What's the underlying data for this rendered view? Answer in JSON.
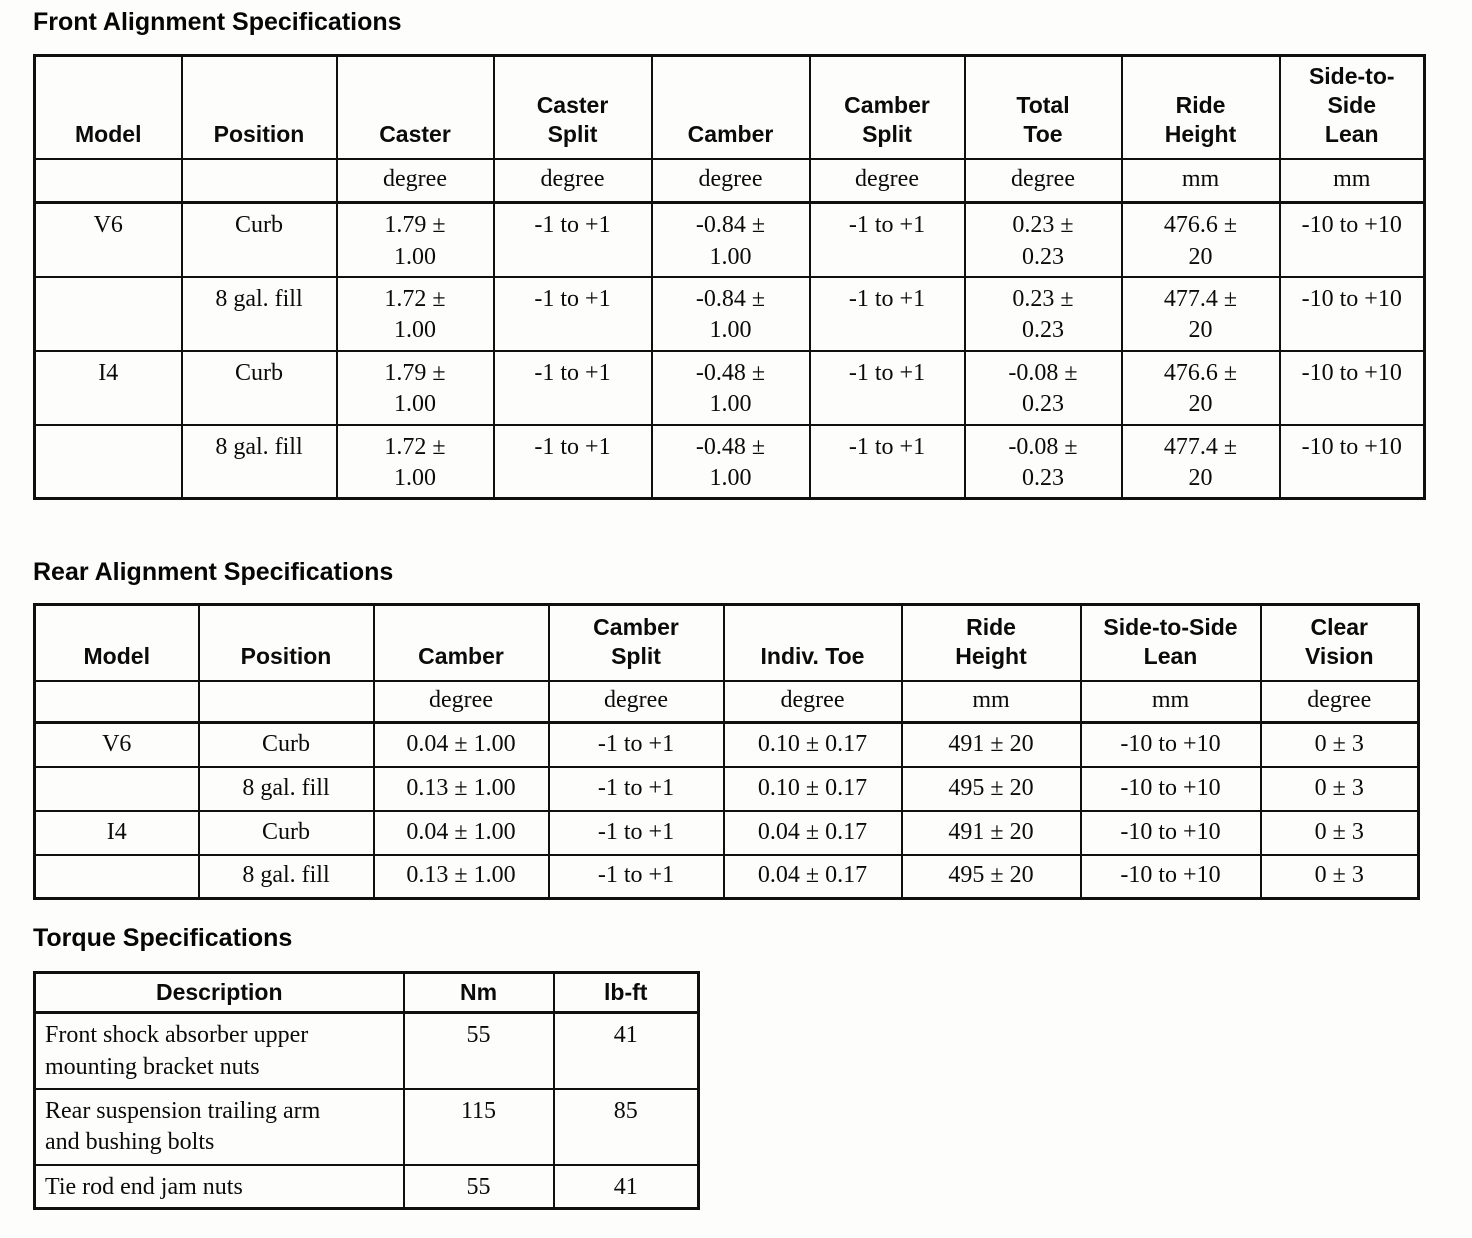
{
  "front": {
    "title": "Front Alignment Specifications",
    "headers": [
      "Model",
      "Position",
      "Caster",
      "Caster\nSplit",
      "Camber",
      "Camber\nSplit",
      "Total\nToe",
      "Ride\nHeight",
      "Side-to-\nSide\nLean"
    ],
    "units": [
      "",
      "",
      "degree",
      "degree",
      "degree",
      "degree",
      "degree",
      "mm",
      "mm"
    ],
    "rows": [
      [
        "V6",
        "Curb",
        "1.79 ±\n1.00",
        "-1 to +1",
        "-0.84 ±\n1.00",
        "-1 to +1",
        "0.23 ±\n0.23",
        "476.6 ±\n20",
        "-10 to +10"
      ],
      [
        "",
        "8 gal. fill",
        "1.72 ±\n1.00",
        "-1 to +1",
        "-0.84 ±\n1.00",
        "-1 to +1",
        "0.23 ±\n0.23",
        "477.4 ±\n20",
        "-10 to +10"
      ],
      [
        "I4",
        "Curb",
        "1.79 ±\n1.00",
        "-1 to +1",
        "-0.48 ±\n1.00",
        "-1 to +1",
        "-0.08 ±\n0.23",
        "476.6 ±\n20",
        "-10 to +10"
      ],
      [
        "",
        "8 gal. fill",
        "1.72 ±\n1.00",
        "-1 to +1",
        "-0.48 ±\n1.00",
        "-1 to +1",
        "-0.08 ±\n0.23",
        "477.4 ±\n20",
        "-10 to +10"
      ]
    ]
  },
  "rear": {
    "title": "Rear Alignment Specifications",
    "headers": [
      "Model",
      "Position",
      "Camber",
      "Camber\nSplit",
      "Indiv. Toe",
      "Ride\nHeight",
      "Side-to-Side\nLean",
      "Clear\nVision"
    ],
    "units": [
      "",
      "",
      "degree",
      "degree",
      "degree",
      "mm",
      "mm",
      "degree"
    ],
    "rows": [
      [
        "V6",
        "Curb",
        "0.04 ± 1.00",
        "-1 to +1",
        "0.10 ± 0.17",
        "491 ± 20",
        "-10 to +10",
        "0 ± 3"
      ],
      [
        "",
        "8 gal. fill",
        "0.13 ± 1.00",
        "-1 to +1",
        "0.10 ± 0.17",
        "495 ± 20",
        "-10 to +10",
        "0 ± 3"
      ],
      [
        "I4",
        "Curb",
        "0.04 ± 1.00",
        "-1 to +1",
        "0.04 ± 0.17",
        "491 ± 20",
        "-10 to +10",
        "0 ± 3"
      ],
      [
        "",
        "8 gal. fill",
        "0.13 ± 1.00",
        "-1 to +1",
        "0.04 ± 0.17",
        "495 ± 20",
        "-10 to +10",
        "0 ± 3"
      ]
    ]
  },
  "torque": {
    "title": "Torque Specifications",
    "headers": [
      "Description",
      "Nm",
      "lb-ft"
    ],
    "rows": [
      [
        "Front shock absorber upper\nmounting bracket nuts",
        "55",
        "41"
      ],
      [
        "Rear suspension trailing arm\nand bushing bolts",
        "115",
        "85"
      ],
      [
        "Tie rod end jam nuts",
        "55",
        "41"
      ]
    ]
  }
}
